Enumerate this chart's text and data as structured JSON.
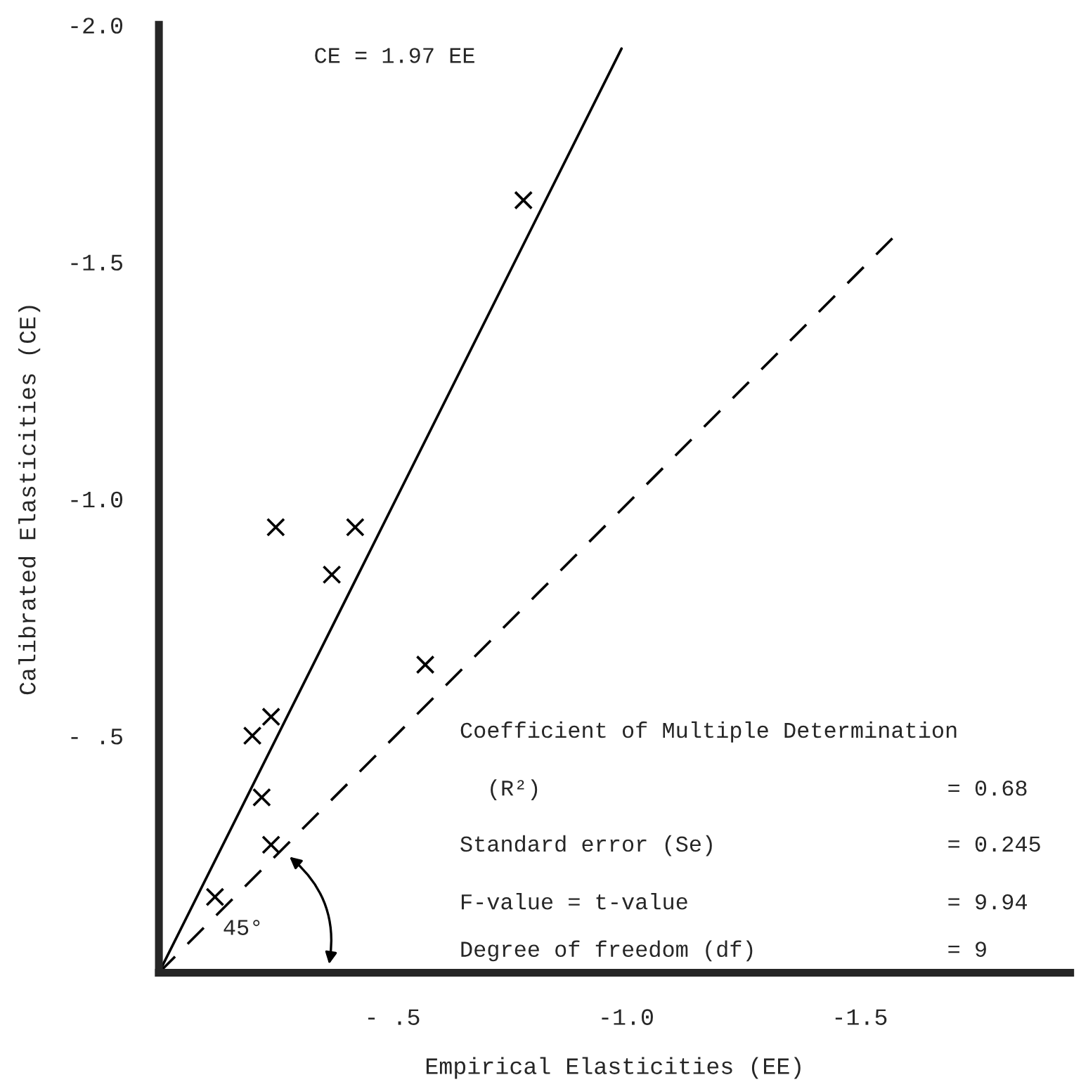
{
  "chart_data": {
    "type": "scatter",
    "xlabel": "Empirical Elasticities (EE)",
    "ylabel": "Calibrated Elasticities (CE)",
    "xlim": [
      0,
      -1.95
    ],
    "ylim": [
      0,
      -2.0
    ],
    "xticks": [
      {
        "value": -0.5,
        "label": "- .5"
      },
      {
        "value": -1.0,
        "label": "-1.0"
      },
      -1.5
    ],
    "yticks": [
      {
        "value": -0.5,
        "label": "- .5"
      },
      {
        "value": -1.0,
        "label": "-1.0"
      },
      -1.5,
      {
        "value": -2.0,
        "label": "-2.0"
      }
    ],
    "grid": false,
    "legend": false,
    "series": [
      {
        "marker": "cross",
        "color": "#000000",
        "x": [
          -0.12,
          -0.24,
          -0.22,
          -0.2,
          -0.24,
          -0.37,
          -0.25,
          -0.42,
          -0.57,
          -0.78
        ],
        "values": [
          -0.16,
          -0.27,
          -0.37,
          -0.5,
          -0.54,
          -0.84,
          -0.94,
          -0.94,
          -0.65,
          -1.63
        ]
      },
      {
        "type": "line",
        "color": "#000000",
        "line_style": "solid",
        "x": [
          0,
          -0.99
        ],
        "values": [
          0,
          -1.95
        ]
      },
      {
        "type": "line",
        "color": "#000000",
        "line_style": "dashed",
        "x": [
          0,
          -1.58
        ],
        "values": [
          0,
          -1.56
        ]
      }
    ],
    "annotations": [
      "CE = 1.97 EE",
      "Coefficient of Multiple Determination",
      "(R²)",
      "= 0.68",
      "Standard error (Se)",
      "= 0.245",
      "F-value = t-value",
      "= 9.94",
      "Degree of freedom (df)",
      "= 9",
      "45°"
    ]
  }
}
